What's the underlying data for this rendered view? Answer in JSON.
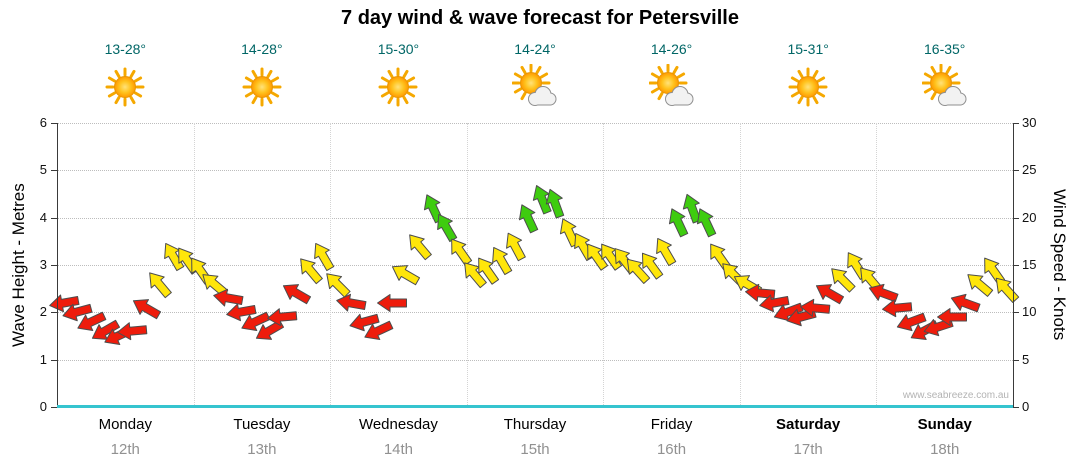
{
  "title": "7 day wind & wave forecast for Petersville",
  "watermark": "www.seabreeze.com.au",
  "colors": {
    "temperature_text": "#006666",
    "bottom_axis": "#35c4cf",
    "date_text": "#919191"
  },
  "axes": {
    "left_label": "Wave Height - Metres",
    "right_label": "Wind Speed - Knots",
    "left_ticks": [
      0,
      1,
      2,
      3,
      4,
      5,
      6
    ],
    "right_ticks": [
      0,
      5,
      10,
      15,
      20,
      25,
      30
    ],
    "left_max": 6,
    "right_max": 30
  },
  "days": [
    {
      "name": "Monday",
      "date": "12th",
      "temp": "13-28°",
      "icon": "sun",
      "bold": false
    },
    {
      "name": "Tuesday",
      "date": "13th",
      "temp": "14-28°",
      "icon": "sun",
      "bold": false
    },
    {
      "name": "Wednesday",
      "date": "14th",
      "temp": "15-30°",
      "icon": "sun",
      "bold": false
    },
    {
      "name": "Thursday",
      "date": "15th",
      "temp": "14-24°",
      "icon": "sun-cloud",
      "bold": false
    },
    {
      "name": "Friday",
      "date": "16th",
      "temp": "14-26°",
      "icon": "sun-cloud",
      "bold": false
    },
    {
      "name": "Saturday",
      "date": "17th",
      "temp": "15-31°",
      "icon": "sun",
      "bold": true
    },
    {
      "name": "Sunday",
      "date": "18th",
      "temp": "16-35°",
      "icon": "sun-cloud",
      "bold": true
    }
  ],
  "chart_data": {
    "type": "wind-arrow-series",
    "title": "7 day wind & wave forecast for Petersville",
    "x_categories": [
      "Monday 12th",
      "Tuesday 13th",
      "Wednesday 14th",
      "Thursday 15th",
      "Friday 16th",
      "Saturday 17th",
      "Sunday 18th"
    ],
    "points_per_day": 10,
    "y_axis_left": {
      "label": "Wave Height - Metres",
      "range": [
        0,
        6
      ]
    },
    "y_axis_right": {
      "label": "Wind Speed - Knots",
      "range": [
        0,
        30
      ]
    },
    "legend": "arrow color encodes wind speed: red = light, yellow = moderate, green = strong; arrow angle = wind direction",
    "color_thresholds_knots": {
      "yellow_min": 12.5,
      "green_min": 19
    },
    "colors": {
      "red": "#ee1c0c",
      "yellow": "#ffe60a",
      "green": "#3ecc0f"
    },
    "series": [
      {
        "day": "Monday",
        "knots": [
          11,
          10,
          9,
          8,
          7.5,
          8,
          10.5,
          13,
          16,
          15.5
        ],
        "dir_deg": [
          -100,
          -105,
          -115,
          -120,
          -115,
          -95,
          -60,
          -40,
          -30,
          -35
        ]
      },
      {
        "day": "Tuesday",
        "knots": [
          14.5,
          13,
          11.5,
          10,
          9,
          8,
          9.5,
          12,
          14.5,
          16
        ],
        "dir_deg": [
          -35,
          -50,
          -80,
          -100,
          -115,
          -120,
          -95,
          -60,
          -40,
          -30
        ]
      },
      {
        "day": "Wednesday",
        "knots": [
          13,
          11,
          9,
          8,
          11,
          14,
          17,
          21,
          19,
          16.5
        ],
        "dir_deg": [
          -45,
          -80,
          -105,
          -115,
          -90,
          -60,
          -40,
          -25,
          -30,
          -35
        ]
      },
      {
        "day": "Thursday",
        "knots": [
          14,
          14.5,
          15.5,
          17,
          20,
          22,
          21.5,
          18.5,
          17,
          16
        ],
        "dir_deg": [
          -40,
          -35,
          -30,
          -28,
          -25,
          -22,
          -20,
          -25,
          -30,
          -35
        ]
      },
      {
        "day": "Friday",
        "knots": [
          16,
          15.5,
          14.5,
          15,
          16.5,
          19.5,
          21,
          19.5,
          16,
          14
        ],
        "dir_deg": [
          -35,
          -38,
          -42,
          -36,
          -30,
          -25,
          -20,
          -25,
          -35,
          -45
        ]
      },
      {
        "day": "Saturday",
        "knots": [
          13,
          12,
          11,
          10,
          9.5,
          10.5,
          12,
          13.5,
          15,
          13.5
        ],
        "dir_deg": [
          -60,
          -85,
          -100,
          -110,
          -105,
          -85,
          -60,
          -45,
          -32,
          -40
        ]
      },
      {
        "day": "Sunday",
        "knots": [
          12,
          10.5,
          9,
          8,
          8.5,
          9.5,
          11,
          13,
          14.5,
          12.5
        ],
        "dir_deg": [
          -70,
          -95,
          -110,
          -118,
          -108,
          -90,
          -70,
          -50,
          -35,
          -42
        ]
      }
    ]
  }
}
